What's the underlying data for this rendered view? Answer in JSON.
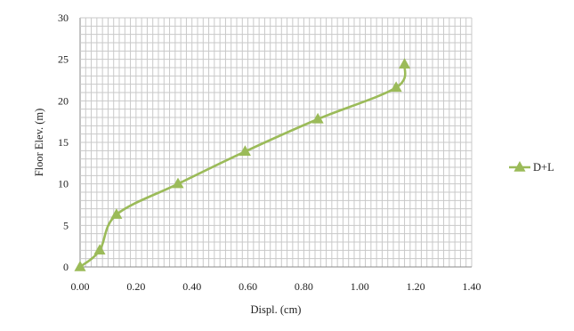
{
  "chart_data": {
    "type": "line",
    "title": "",
    "xlabel": "Displ. (cm)",
    "ylabel": "Floor Elev. (m)",
    "xlim": [
      0,
      1.4
    ],
    "ylim": [
      0,
      30
    ],
    "x_ticks": [
      "0.00",
      "0.20",
      "0.40",
      "0.60",
      "0.80",
      "1.00",
      "1.20",
      "1.40"
    ],
    "y_ticks": [
      "0",
      "5",
      "10",
      "15",
      "20",
      "25",
      "30"
    ],
    "grid": true,
    "legend_position": "right",
    "series": [
      {
        "name": "D+L",
        "color": "#9bbb59",
        "marker": "triangle",
        "smooth": true,
        "x": [
          0.0,
          0.07,
          0.13,
          0.35,
          0.59,
          0.85,
          1.13,
          1.16
        ],
        "y": [
          0.0,
          2.0,
          6.3,
          10.0,
          13.9,
          17.8,
          21.6,
          24.4
        ]
      }
    ]
  }
}
